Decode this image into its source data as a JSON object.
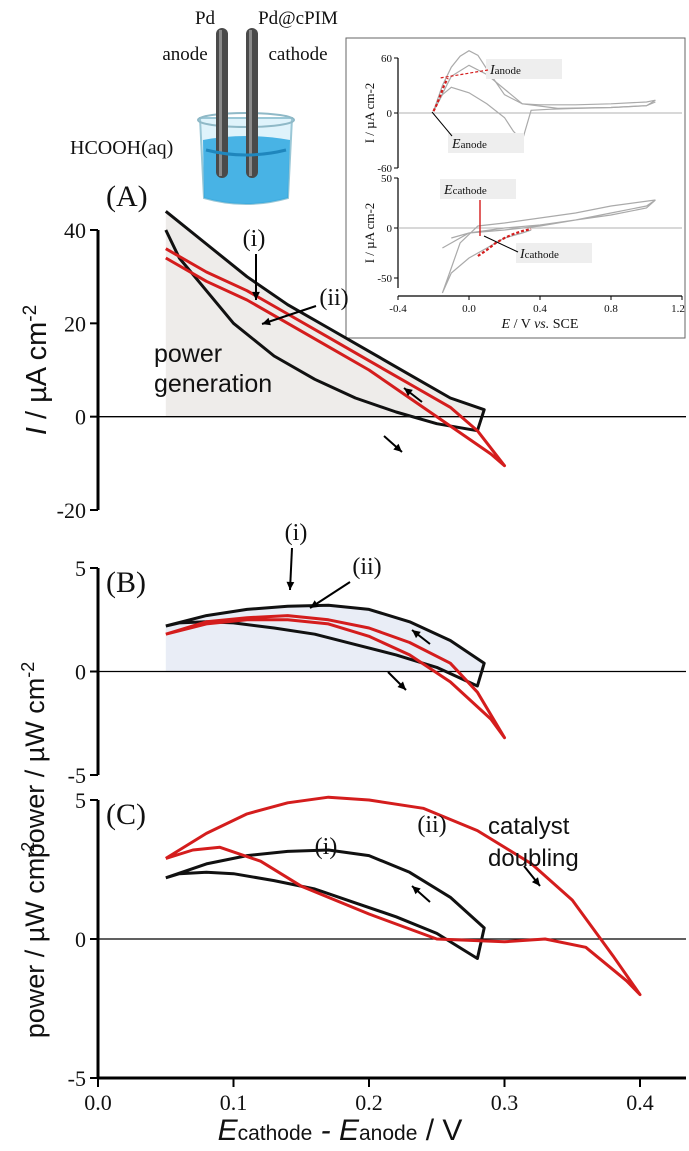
{
  "chart_data": [
    {
      "id": "A",
      "type": "line",
      "panel_label": "(A)",
      "ylabel_main": "I",
      "ylabel_rest": " / µA cm",
      "ylabel_sup": "-2",
      "ylim": [
        -20,
        40
      ],
      "yticks": [
        -20,
        0,
        20,
        40
      ],
      "xlim": [
        0.0,
        0.4
      ],
      "annotations": [
        "(i)",
        "(ii)"
      ],
      "shaded_label": [
        "power",
        "generation"
      ],
      "series": [
        {
          "name": "(i)",
          "color": "#111111",
          "x": [
            0.05,
            0.08,
            0.11,
            0.14,
            0.17,
            0.2,
            0.23,
            0.26,
            0.285,
            0.28,
            0.25,
            0.22,
            0.19,
            0.16,
            0.13,
            0.1,
            0.08,
            0.06,
            0.05
          ],
          "y": [
            44,
            37,
            30,
            24,
            19,
            14,
            9,
            4,
            1.5,
            -3,
            -1.5,
            1,
            4,
            8,
            13,
            20,
            27,
            34,
            40
          ]
        },
        {
          "name": "(ii)",
          "color": "#d41d1d",
          "x": [
            0.05,
            0.08,
            0.11,
            0.14,
            0.17,
            0.2,
            0.23,
            0.26,
            0.28,
            0.3,
            0.29,
            0.26,
            0.23,
            0.2,
            0.17,
            0.14,
            0.11,
            0.08,
            0.05
          ],
          "y": [
            36,
            31,
            27,
            22,
            17,
            12,
            7,
            2,
            -3,
            -10.5,
            -8,
            -2,
            4,
            10,
            15,
            20,
            25,
            29,
            34
          ]
        }
      ]
    },
    {
      "id": "B",
      "type": "line",
      "panel_label": "(B)",
      "ylim": [
        -5,
        5
      ],
      "yticks": [
        -5,
        0,
        5
      ],
      "xlim": [
        0.0,
        0.4
      ],
      "annotations": [
        "(i)",
        "(ii)"
      ],
      "series": [
        {
          "name": "(i)",
          "color": "#111111",
          "x": [
            0.05,
            0.08,
            0.11,
            0.14,
            0.17,
            0.2,
            0.23,
            0.26,
            0.285,
            0.28,
            0.25,
            0.22,
            0.19,
            0.16,
            0.13,
            0.1,
            0.08,
            0.06,
            0.05
          ],
          "y": [
            2.2,
            2.7,
            3.0,
            3.15,
            3.2,
            3.0,
            2.4,
            1.5,
            0.4,
            -0.7,
            0.2,
            0.8,
            1.3,
            1.8,
            2.1,
            2.35,
            2.4,
            2.35,
            2.2
          ]
        },
        {
          "name": "(ii)",
          "color": "#d41d1d",
          "x": [
            0.05,
            0.08,
            0.11,
            0.14,
            0.17,
            0.2,
            0.23,
            0.26,
            0.28,
            0.3,
            0.29,
            0.26,
            0.23,
            0.2,
            0.17,
            0.14,
            0.11,
            0.08,
            0.05
          ],
          "y": [
            1.8,
            2.4,
            2.6,
            2.7,
            2.5,
            2.1,
            1.4,
            0.4,
            -1.0,
            -3.2,
            -2.3,
            -0.5,
            0.8,
            1.7,
            2.3,
            2.5,
            2.5,
            2.3,
            1.8
          ]
        }
      ]
    },
    {
      "id": "C",
      "type": "line",
      "panel_label": "(C)",
      "ylabel_shared": "power / µW cm",
      "ylabel_sup": "-2",
      "ylim": [
        -5,
        5
      ],
      "yticks": [
        -5,
        0,
        5
      ],
      "xlim": [
        0.0,
        0.4
      ],
      "xticks": [
        "0.0",
        "0.1",
        "0.2",
        "0.3",
        "0.4"
      ],
      "xlabel_parts": [
        "E",
        "cathode",
        " - E",
        "anode",
        " / V"
      ],
      "annotations": [
        "(i)",
        "(ii)"
      ],
      "note": [
        "catalyst",
        "doubling"
      ],
      "series": [
        {
          "name": "(i)",
          "color": "#111111",
          "x": [
            0.05,
            0.08,
            0.11,
            0.14,
            0.17,
            0.2,
            0.23,
            0.26,
            0.285,
            0.28,
            0.25,
            0.22,
            0.19,
            0.16,
            0.13,
            0.1,
            0.08,
            0.06,
            0.05
          ],
          "y": [
            2.2,
            2.7,
            3.0,
            3.15,
            3.2,
            3.0,
            2.4,
            1.5,
            0.4,
            -0.7,
            0.2,
            0.8,
            1.3,
            1.8,
            2.1,
            2.35,
            2.4,
            2.35,
            2.2
          ]
        },
        {
          "name": "(ii)",
          "color": "#d41d1d",
          "x": [
            0.05,
            0.08,
            0.11,
            0.14,
            0.17,
            0.2,
            0.24,
            0.28,
            0.32,
            0.35,
            0.38,
            0.4,
            0.39,
            0.36,
            0.33,
            0.3,
            0.25,
            0.2,
            0.15,
            0.12,
            0.09,
            0.07,
            0.05
          ],
          "y": [
            2.9,
            3.8,
            4.5,
            4.9,
            5.1,
            5.0,
            4.7,
            3.9,
            2.7,
            1.4,
            -0.6,
            -2.0,
            -1.5,
            -0.3,
            0.0,
            -0.1,
            0.0,
            0.9,
            1.9,
            2.8,
            3.3,
            3.2,
            2.9
          ]
        }
      ]
    },
    {
      "id": "inset-anode",
      "type": "line",
      "ylabel": "I / µA cm-2",
      "ylim": [
        -60,
        60
      ],
      "yticks": [
        "60",
        "0",
        "-60"
      ],
      "xlim": [
        -0.4,
        1.2
      ],
      "label_I": [
        "I",
        "anode"
      ],
      "label_E": [
        "E",
        "anode"
      ],
      "series": [
        {
          "name": "anode CV",
          "color": "#aaaaaa",
          "x": [
            -0.2,
            -0.15,
            -0.1,
            -0.05,
            0.0,
            0.05,
            0.1,
            0.2,
            0.3,
            0.4,
            0.6,
            0.8,
            1.0,
            1.05,
            1.0,
            0.8,
            0.6,
            0.45,
            0.35,
            0.3,
            0.25,
            0.2,
            0.1,
            0.0,
            -0.1,
            -0.15,
            -0.2
          ],
          "y": [
            2,
            30,
            50,
            62,
            68,
            63,
            48,
            20,
            10,
            9,
            9,
            10,
            12,
            14,
            8,
            6,
            5,
            4,
            3,
            -30,
            -20,
            -5,
            10,
            22,
            28,
            20,
            2
          ]
        },
        {
          "name": "anode CV 2",
          "color": "#aaaaaa",
          "x": [
            -0.2,
            -0.1,
            0.0,
            0.1,
            0.3,
            0.5,
            0.8,
            1.0,
            1.05
          ],
          "y": [
            2,
            40,
            52,
            42,
            10,
            5,
            6,
            8,
            12
          ]
        },
        {
          "name": "anode highlight",
          "color": "#d41d1d",
          "x": [
            -0.2,
            -0.18,
            -0.16,
            -0.14,
            -0.12
          ],
          "y": [
            2,
            10,
            20,
            30,
            38
          ]
        }
      ]
    },
    {
      "id": "inset-cathode",
      "type": "line",
      "ylabel": "I / µA cm-2",
      "ylim": [
        -60,
        50
      ],
      "yticks": [
        "50",
        "0",
        "-50"
      ],
      "xlim": [
        -0.4,
        1.2
      ],
      "xticks": [
        "-0.4",
        "0.0",
        "0.4",
        "0.8",
        "1.2"
      ],
      "xlabel_parts": [
        "E",
        " / V ",
        "vs.",
        " SCE"
      ],
      "label_E": [
        "E",
        "cathode"
      ],
      "label_I": [
        "I",
        "cathode"
      ],
      "series": [
        {
          "name": "cathode CV",
          "color": "#aaaaaa",
          "x": [
            1.05,
            0.8,
            0.6,
            0.4,
            0.2,
            0.05,
            -0.05,
            -0.1,
            -0.15,
            -0.1,
            0.0,
            0.1,
            0.2,
            0.3,
            0.35
          ],
          "y": [
            28,
            22,
            15,
            10,
            5,
            2,
            -15,
            -40,
            -65,
            -45,
            -30,
            -20,
            -10,
            -5,
            -2
          ]
        },
        {
          "name": "cathode CV 2",
          "color": "#aaaaaa",
          "x": [
            -0.15,
            0.0,
            0.2,
            0.4,
            0.6,
            0.8,
            1.0,
            1.05,
            1.0,
            0.8,
            0.6,
            0.4,
            0.2,
            0.0,
            -0.1
          ],
          "y": [
            -20,
            -5,
            0,
            3,
            8,
            13,
            20,
            28,
            22,
            15,
            8,
            2,
            -2,
            -5,
            -10
          ]
        },
        {
          "name": "cathode highlight",
          "color": "#d41d1d",
          "x": [
            0.05,
            0.1,
            0.15,
            0.2,
            0.25,
            0.3,
            0.35
          ],
          "y": [
            -28,
            -22,
            -15,
            -10,
            -6,
            -3,
            -1
          ]
        }
      ]
    }
  ],
  "illustration": {
    "anode_label": [
      "Pd",
      "anode"
    ],
    "cathode_label": [
      "Pd@cPIM",
      "cathode"
    ],
    "solution_label": "HCOOH(aq)"
  }
}
